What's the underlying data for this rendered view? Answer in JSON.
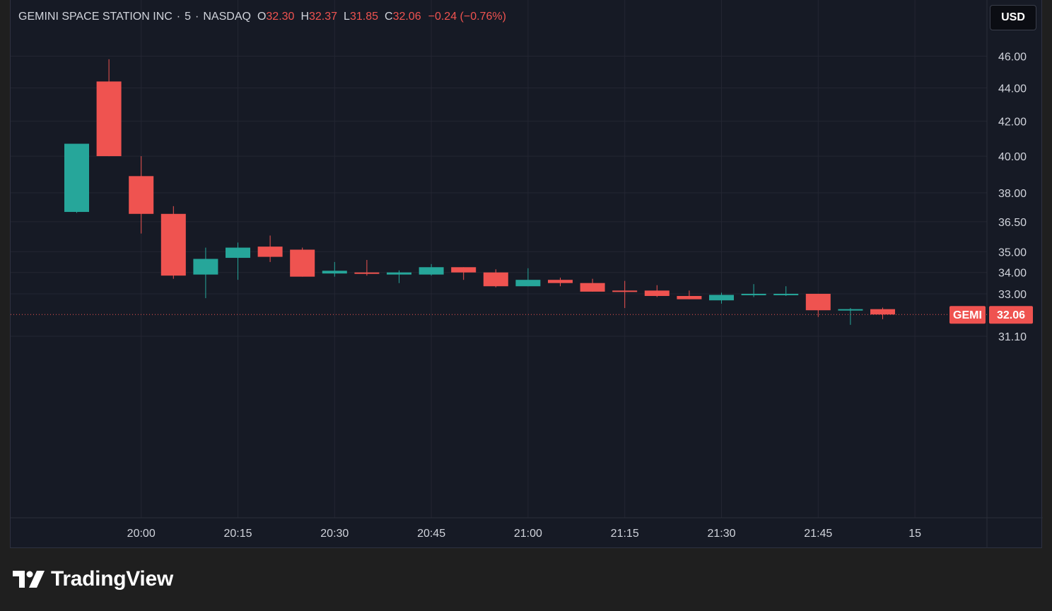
{
  "legend": {
    "symbol_name": "GEMINI SPACE STATION INC",
    "interval": "5",
    "exchange": "NASDAQ",
    "open_label": "O",
    "open_value": "32.30",
    "high_label": "H",
    "high_value": "32.37",
    "low_label": "L",
    "low_value": "31.85",
    "close_label": "C",
    "close_value": "32.06",
    "change": "−0.24 (−0.76%)"
  },
  "currency_button": "USD",
  "brand": {
    "name": "TradingView",
    "logo_icon": "tradingview-logo-icon"
  },
  "colors": {
    "up": "#26a69a",
    "down": "#ef5350",
    "background": "#161a25",
    "grid": "#232632",
    "text": "#d1d4dc"
  },
  "chart_data": {
    "type": "candlestick",
    "title": "GEMINI SPACE STATION INC · 5 · NASDAQ",
    "price_scale": "log",
    "ylim": [
      30.3,
      47.0
    ],
    "y_ticks": [
      "46.00",
      "44.00",
      "42.00",
      "40.00",
      "38.00",
      "36.50",
      "35.00",
      "34.00",
      "33.00",
      "31.10"
    ],
    "x_ticks": [
      "20:00",
      "20:15",
      "20:30",
      "20:45",
      "21:00",
      "21:15",
      "21:30",
      "21:45",
      "15"
    ],
    "last_price_label": {
      "symbol": "GEMI",
      "value": "32.06"
    },
    "candles": [
      {
        "time": "19:50",
        "open": 37.0,
        "high": 40.7,
        "low": 36.95,
        "close": 40.7
      },
      {
        "time": "19:55",
        "open": 44.4,
        "high": 45.8,
        "low": 40.0,
        "close": 40.0
      },
      {
        "time": "20:00",
        "open": 38.9,
        "high": 40.0,
        "low": 35.9,
        "close": 36.9
      },
      {
        "time": "20:05",
        "open": 36.9,
        "high": 37.3,
        "low": 33.7,
        "close": 33.85
      },
      {
        "time": "20:10",
        "open": 33.9,
        "high": 35.2,
        "low": 32.8,
        "close": 34.65
      },
      {
        "time": "20:15",
        "open": 34.7,
        "high": 35.45,
        "low": 33.65,
        "close": 35.2
      },
      {
        "time": "20:20",
        "open": 35.25,
        "high": 35.8,
        "low": 34.5,
        "close": 34.75
      },
      {
        "time": "20:25",
        "open": 35.1,
        "high": 35.2,
        "low": 33.8,
        "close": 33.8
      },
      {
        "time": "20:30",
        "open": 33.95,
        "high": 34.5,
        "low": 33.8,
        "close": 34.08
      },
      {
        "time": "20:35",
        "open": 34.0,
        "high": 34.6,
        "low": 33.85,
        "close": 33.95
      },
      {
        "time": "20:40",
        "open": 33.9,
        "high": 34.1,
        "low": 33.5,
        "close": 34.0
      },
      {
        "time": "20:45",
        "open": 33.9,
        "high": 34.4,
        "low": 33.85,
        "close": 34.25
      },
      {
        "time": "20:50",
        "open": 34.25,
        "high": 34.25,
        "low": 33.65,
        "close": 34.0
      },
      {
        "time": "20:55",
        "open": 34.0,
        "high": 34.15,
        "low": 33.3,
        "close": 33.35
      },
      {
        "time": "21:00",
        "open": 33.35,
        "high": 34.2,
        "low": 33.35,
        "close": 33.65
      },
      {
        "time": "21:05",
        "open": 33.65,
        "high": 33.75,
        "low": 33.35,
        "close": 33.5
      },
      {
        "time": "21:10",
        "open": 33.5,
        "high": 33.7,
        "low": 33.1,
        "close": 33.1
      },
      {
        "time": "21:15",
        "open": 33.15,
        "high": 33.6,
        "low": 32.35,
        "close": 33.1
      },
      {
        "time": "21:20",
        "open": 33.15,
        "high": 33.4,
        "low": 32.85,
        "close": 32.9
      },
      {
        "time": "21:25",
        "open": 32.9,
        "high": 33.15,
        "low": 32.75,
        "close": 32.75
      },
      {
        "time": "21:30",
        "open": 32.7,
        "high": 33.05,
        "low": 32.55,
        "close": 32.95
      },
      {
        "time": "21:35",
        "open": 32.95,
        "high": 33.45,
        "low": 32.85,
        "close": 33.0
      },
      {
        "time": "21:40",
        "open": 33.0,
        "high": 33.35,
        "low": 32.9,
        "close": 33.0
      },
      {
        "time": "21:45",
        "open": 33.0,
        "high": 33.0,
        "low": 31.95,
        "close": 32.25
      },
      {
        "time": "21:50",
        "open": 32.25,
        "high": 32.35,
        "low": 31.6,
        "close": 32.3
      },
      {
        "time": "21:55",
        "open": 32.3,
        "high": 32.37,
        "low": 31.85,
        "close": 32.06
      }
    ]
  }
}
